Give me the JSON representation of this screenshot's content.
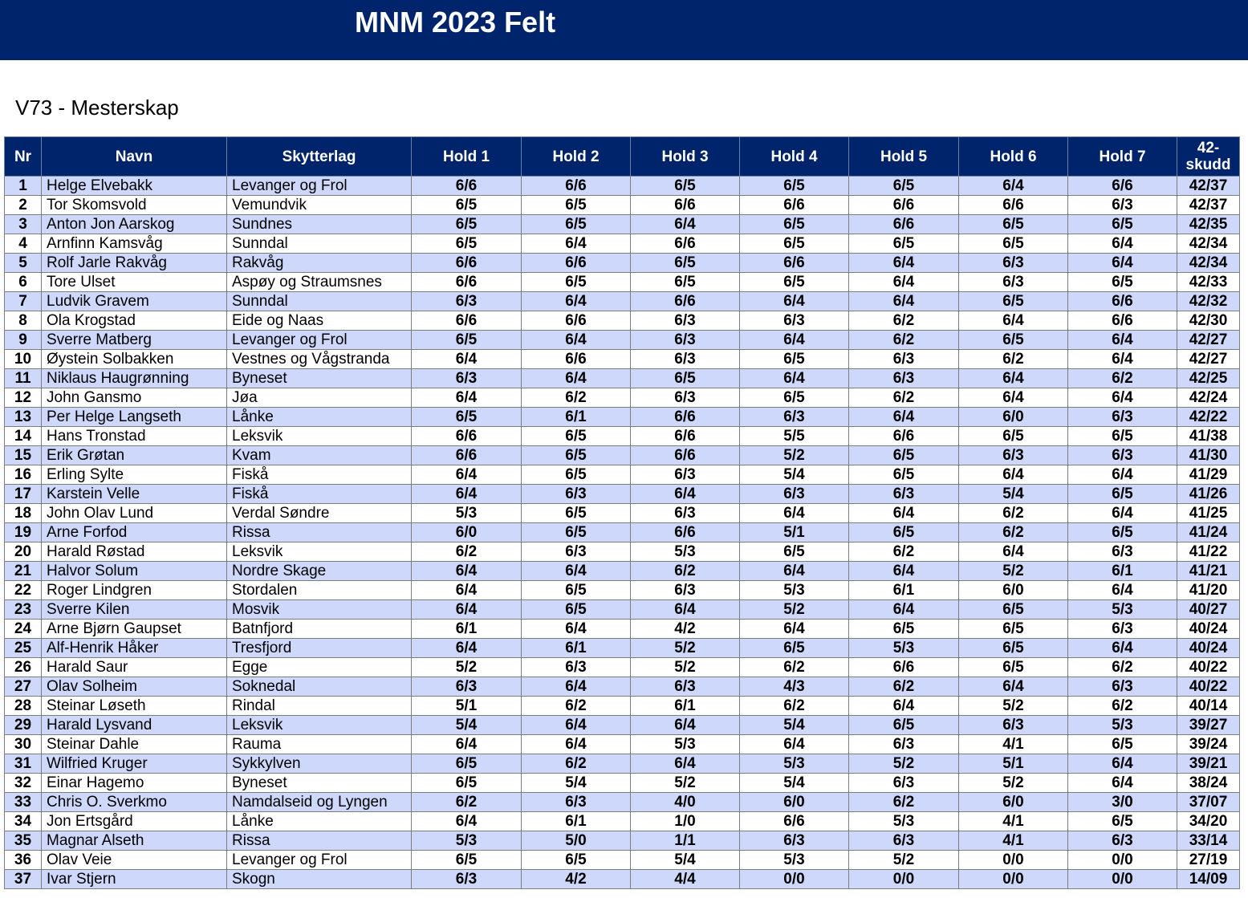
{
  "header": {
    "title": "MNM 2023 Felt"
  },
  "subtitle": "V73 - Mesterskap",
  "columns": [
    "Nr",
    "Navn",
    "Skytterlag",
    "Hold 1",
    "Hold 2",
    "Hold 3",
    "Hold 4",
    "Hold 5",
    "Hold 6",
    "Hold 7",
    "42-skudd"
  ],
  "colors": {
    "header_bg": "#00246b",
    "row_alt_bg": "#cdd8fb",
    "row_bg": "#ffffff"
  },
  "rows": [
    {
      "nr": "1",
      "navn": "Helge Elvebakk",
      "lag": "Levanger og Frol",
      "holds": [
        "6/6",
        "6/6",
        "6/5",
        "6/5",
        "6/5",
        "6/4",
        "6/6"
      ],
      "total": "42/37"
    },
    {
      "nr": "2",
      "navn": "Tor Skomsvold",
      "lag": "Vemundvik",
      "holds": [
        "6/5",
        "6/5",
        "6/6",
        "6/6",
        "6/6",
        "6/6",
        "6/3"
      ],
      "total": "42/37"
    },
    {
      "nr": "3",
      "navn": "Anton Jon Aarskog",
      "lag": "Sundnes",
      "holds": [
        "6/5",
        "6/5",
        "6/4",
        "6/5",
        "6/6",
        "6/5",
        "6/5"
      ],
      "total": "42/35"
    },
    {
      "nr": "4",
      "navn": "Arnfinn Kamsvåg",
      "lag": "Sunndal",
      "holds": [
        "6/5",
        "6/4",
        "6/6",
        "6/5",
        "6/5",
        "6/5",
        "6/4"
      ],
      "total": "42/34"
    },
    {
      "nr": "5",
      "navn": "Rolf Jarle Rakvåg",
      "lag": "Rakvåg",
      "holds": [
        "6/6",
        "6/6",
        "6/5",
        "6/6",
        "6/4",
        "6/3",
        "6/4"
      ],
      "total": "42/34"
    },
    {
      "nr": "6",
      "navn": "Tore Ulset",
      "lag": "Aspøy og Straumsnes",
      "holds": [
        "6/6",
        "6/5",
        "6/5",
        "6/5",
        "6/4",
        "6/3",
        "6/5"
      ],
      "total": "42/33"
    },
    {
      "nr": "7",
      "navn": "Ludvik Gravem",
      "lag": "Sunndal",
      "holds": [
        "6/3",
        "6/4",
        "6/6",
        "6/4",
        "6/4",
        "6/5",
        "6/6"
      ],
      "total": "42/32"
    },
    {
      "nr": "8",
      "navn": "Ola Krogstad",
      "lag": "Eide og Naas",
      "holds": [
        "6/6",
        "6/6",
        "6/3",
        "6/3",
        "6/2",
        "6/4",
        "6/6"
      ],
      "total": "42/30"
    },
    {
      "nr": "9",
      "navn": "Sverre Matberg",
      "lag": "Levanger og Frol",
      "holds": [
        "6/5",
        "6/4",
        "6/3",
        "6/4",
        "6/2",
        "6/5",
        "6/4"
      ],
      "total": "42/27"
    },
    {
      "nr": "10",
      "navn": "Øystein Solbakken",
      "lag": "Vestnes og Vågstranda",
      "holds": [
        "6/4",
        "6/6",
        "6/3",
        "6/5",
        "6/3",
        "6/2",
        "6/4"
      ],
      "total": "42/27"
    },
    {
      "nr": "11",
      "navn": "Niklaus Haugrønning",
      "lag": "Byneset",
      "holds": [
        "6/3",
        "6/4",
        "6/5",
        "6/4",
        "6/3",
        "6/4",
        "6/2"
      ],
      "total": "42/25"
    },
    {
      "nr": "12",
      "navn": "John Gansmo",
      "lag": "Jøa",
      "holds": [
        "6/4",
        "6/2",
        "6/3",
        "6/5",
        "6/2",
        "6/4",
        "6/4"
      ],
      "total": "42/24"
    },
    {
      "nr": "13",
      "navn": "Per Helge Langseth",
      "lag": "Lånke",
      "holds": [
        "6/5",
        "6/1",
        "6/6",
        "6/3",
        "6/4",
        "6/0",
        "6/3"
      ],
      "total": "42/22"
    },
    {
      "nr": "14",
      "navn": "Hans Tronstad",
      "lag": "Leksvik",
      "holds": [
        "6/6",
        "6/5",
        "6/6",
        "5/5",
        "6/6",
        "6/5",
        "6/5"
      ],
      "total": "41/38"
    },
    {
      "nr": "15",
      "navn": "Erik Grøtan",
      "lag": "Kvam",
      "holds": [
        "6/6",
        "6/5",
        "6/6",
        "5/2",
        "6/5",
        "6/3",
        "6/3"
      ],
      "total": "41/30"
    },
    {
      "nr": "16",
      "navn": "Erling Sylte",
      "lag": "Fiskå",
      "holds": [
        "6/4",
        "6/5",
        "6/3",
        "5/4",
        "6/5",
        "6/4",
        "6/4"
      ],
      "total": "41/29"
    },
    {
      "nr": "17",
      "navn": "Karstein Velle",
      "lag": "Fiskå",
      "holds": [
        "6/4",
        "6/3",
        "6/4",
        "6/3",
        "6/3",
        "5/4",
        "6/5"
      ],
      "total": "41/26"
    },
    {
      "nr": "18",
      "navn": "John Olav Lund",
      "lag": "Verdal Søndre",
      "holds": [
        "5/3",
        "6/5",
        "6/3",
        "6/4",
        "6/4",
        "6/2",
        "6/4"
      ],
      "total": "41/25"
    },
    {
      "nr": "19",
      "navn": "Arne Forfod",
      "lag": "Rissa",
      "holds": [
        "6/0",
        "6/5",
        "6/6",
        "5/1",
        "6/5",
        "6/2",
        "6/5"
      ],
      "total": "41/24"
    },
    {
      "nr": "20",
      "navn": "Harald Røstad",
      "lag": "Leksvik",
      "holds": [
        "6/2",
        "6/3",
        "5/3",
        "6/5",
        "6/2",
        "6/4",
        "6/3"
      ],
      "total": "41/22"
    },
    {
      "nr": "21",
      "navn": "Halvor Solum",
      "lag": "Nordre Skage",
      "holds": [
        "6/4",
        "6/4",
        "6/2",
        "6/4",
        "6/4",
        "5/2",
        "6/1"
      ],
      "total": "41/21"
    },
    {
      "nr": "22",
      "navn": "Roger Lindgren",
      "lag": "Stordalen",
      "holds": [
        "6/4",
        "6/5",
        "6/3",
        "5/3",
        "6/1",
        "6/0",
        "6/4"
      ],
      "total": "41/20"
    },
    {
      "nr": "23",
      "navn": "Sverre Kilen",
      "lag": "Mosvik",
      "holds": [
        "6/4",
        "6/5",
        "6/4",
        "5/2",
        "6/4",
        "6/5",
        "5/3"
      ],
      "total": "40/27"
    },
    {
      "nr": "24",
      "navn": "Arne Bjørn Gaupset",
      "lag": "Batnfjord",
      "holds": [
        "6/1",
        "6/4",
        "4/2",
        "6/4",
        "6/5",
        "6/5",
        "6/3"
      ],
      "total": "40/24"
    },
    {
      "nr": "25",
      "navn": "Alf-Henrik Håker",
      "lag": "Tresfjord",
      "holds": [
        "6/4",
        "6/1",
        "5/2",
        "6/5",
        "5/3",
        "6/5",
        "6/4"
      ],
      "total": "40/24"
    },
    {
      "nr": "26",
      "navn": "Harald Saur",
      "lag": "Egge",
      "holds": [
        "5/2",
        "6/3",
        "5/2",
        "6/2",
        "6/6",
        "6/5",
        "6/2"
      ],
      "total": "40/22"
    },
    {
      "nr": "27",
      "navn": "Olav Solheim",
      "lag": "Soknedal",
      "holds": [
        "6/3",
        "6/4",
        "6/3",
        "4/3",
        "6/2",
        "6/4",
        "6/3"
      ],
      "total": "40/22"
    },
    {
      "nr": "28",
      "navn": "Steinar Løseth",
      "lag": "Rindal",
      "holds": [
        "5/1",
        "6/2",
        "6/1",
        "6/2",
        "6/4",
        "5/2",
        "6/2"
      ],
      "total": "40/14"
    },
    {
      "nr": "29",
      "navn": "Harald Lysvand",
      "lag": "Leksvik",
      "holds": [
        "5/4",
        "6/4",
        "6/4",
        "5/4",
        "6/5",
        "6/3",
        "5/3"
      ],
      "total": "39/27"
    },
    {
      "nr": "30",
      "navn": "Steinar Dahle",
      "lag": "Rauma",
      "holds": [
        "6/4",
        "6/4",
        "5/3",
        "6/4",
        "6/3",
        "4/1",
        "6/5"
      ],
      "total": "39/24"
    },
    {
      "nr": "31",
      "navn": "Wilfried Kruger",
      "lag": "Sykkylven",
      "holds": [
        "6/5",
        "6/2",
        "6/4",
        "5/3",
        "5/2",
        "5/1",
        "6/4"
      ],
      "total": "39/21"
    },
    {
      "nr": "32",
      "navn": "Einar Hagemo",
      "lag": "Byneset",
      "holds": [
        "6/5",
        "5/4",
        "5/2",
        "5/4",
        "6/3",
        "5/2",
        "6/4"
      ],
      "total": "38/24"
    },
    {
      "nr": "33",
      "navn": "Chris O. Sverkmo",
      "lag": "Namdalseid og Lyngen",
      "holds": [
        "6/2",
        "6/3",
        "4/0",
        "6/0",
        "6/2",
        "6/0",
        "3/0"
      ],
      "total": "37/07"
    },
    {
      "nr": "34",
      "navn": "Jon Ertsgård",
      "lag": "Lånke",
      "holds": [
        "6/4",
        "6/1",
        "1/0",
        "6/6",
        "5/3",
        "4/1",
        "6/5"
      ],
      "total": "34/20"
    },
    {
      "nr": "35",
      "navn": "Magnar Alseth",
      "lag": "Rissa",
      "holds": [
        "5/3",
        "5/0",
        "1/1",
        "6/3",
        "6/3",
        "4/1",
        "6/3"
      ],
      "total": "33/14"
    },
    {
      "nr": "36",
      "navn": "Olav Veie",
      "lag": "Levanger og Frol",
      "holds": [
        "6/5",
        "6/5",
        "5/4",
        "5/3",
        "5/2",
        "0/0",
        "0/0"
      ],
      "total": "27/19"
    },
    {
      "nr": "37",
      "navn": "Ivar Stjern",
      "lag": "Skogn",
      "holds": [
        "6/3",
        "4/2",
        "4/4",
        "0/0",
        "0/0",
        "0/0",
        "0/0"
      ],
      "total": "14/09"
    }
  ]
}
